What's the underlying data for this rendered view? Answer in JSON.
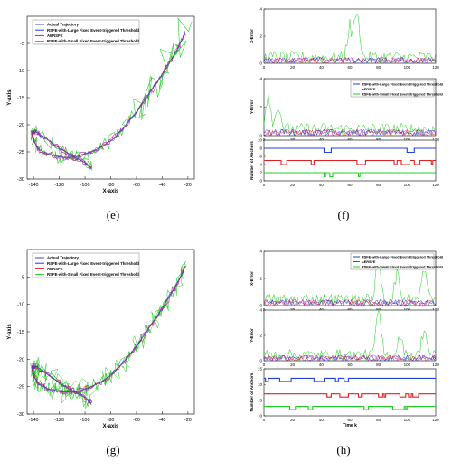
{
  "figure": {
    "panel_labels": {
      "e": "(e)",
      "f": "(f)",
      "g": "(g)",
      "h": "(h)"
    },
    "colors": {
      "actual": "#4a4a9a",
      "large": "#2040e0",
      "aersfe": "#e02020",
      "small": "#20d020",
      "magenta": "#c020c0"
    }
  },
  "chart_data": [
    {
      "id": "e",
      "type": "line",
      "xlabel": "X-axis",
      "ylabel": "Y-axis",
      "xlim": [
        -145,
        -15
      ],
      "ylim": [
        -30,
        0
      ],
      "xticks": [
        -140,
        -120,
        -100,
        -80,
        -60,
        -40,
        -20
      ],
      "yticks": [
        -30,
        -25,
        -20,
        -15,
        -10,
        -5
      ],
      "legend": [
        "Actual Trajectory",
        "RSFE-with-Large Fixed Event-triggered Threshold",
        "AERSFE",
        "RSFE-with-Small Fixed Event-triggered Threshold"
      ],
      "legend_position": "top-left",
      "series_names": [
        "Actual Trajectory",
        "RSFE-with-Large Fixed Event-triggered Threshold",
        "AERSFE",
        "RSFE-with-Small Fixed Event-triggered Threshold"
      ],
      "trajectory_x": [
        -95,
        -100,
        -110,
        -120,
        -130,
        -138,
        -141,
        -140,
        -136,
        -128,
        -118,
        -108,
        -98,
        -88,
        -78,
        -68,
        -58,
        -48,
        -38,
        -28,
        -22
      ],
      "trajectory_y": [
        -28,
        -27,
        -25.7,
        -24.3,
        -22.6,
        -21.3,
        -21.5,
        -23,
        -24.5,
        -25.5,
        -26,
        -26,
        -25.3,
        -24.2,
        -22.6,
        -20,
        -17,
        -13.5,
        -10,
        -6,
        -3
      ]
    },
    {
      "id": "f",
      "type": "line",
      "legend": [
        "RSFE-with-Large Fixed Event-triggered Threshold",
        "AERSFE",
        "RSFE-with-Small Fixed Event-triggered Threshold"
      ],
      "legend_position": "top-right",
      "subplots": [
        {
          "ylabel": "X-Error",
          "xlim": [
            0,
            120
          ],
          "ylim": [
            0,
            4
          ],
          "xticks": [
            0,
            20,
            40,
            60,
            80,
            100,
            120
          ],
          "yticks": [
            0,
            2,
            4
          ]
        },
        {
          "ylabel": "Y-Error",
          "xlim": [
            0,
            120
          ],
          "ylim": [
            0,
            4
          ],
          "xticks": [
            0,
            20,
            40,
            60,
            80,
            100,
            120
          ],
          "yticks": [
            0,
            2,
            4
          ]
        },
        {
          "ylabel": "Number of Anchors",
          "xlim": [
            0,
            120
          ],
          "ylim": [
            0,
            10
          ],
          "xticks": [
            0,
            20,
            40,
            60,
            80,
            100,
            120
          ],
          "yticks": [
            0,
            2,
            4,
            6,
            8,
            10
          ],
          "series_names": [
            "RSFE-with-Large Fixed Event-triggered Threshold",
            "AERSFE",
            "RSFE-with-Small Fixed Event-triggered Threshold"
          ],
          "levels": [
            8,
            5,
            2
          ]
        }
      ]
    },
    {
      "id": "g",
      "type": "line",
      "xlabel": "X-axis",
      "ylabel": "Y-axis",
      "xlim": [
        -145,
        -15
      ],
      "ylim": [
        -30,
        0
      ],
      "xticks": [
        -140,
        -120,
        -100,
        -80,
        -60,
        -40,
        -20
      ],
      "yticks": [
        -30,
        -25,
        -20,
        -15,
        -10,
        -5
      ],
      "legend": [
        "Actual Trajectory",
        "RSFE-with-Large Fixed Event-triggered Threshold",
        "AERSFE",
        "RSFE-with-Small Fixed Event-triggered Threshold"
      ],
      "legend_position": "top-left",
      "series_names": [
        "Actual Trajectory",
        "RSFE-with-Large Fixed Event-triggered Threshold",
        "AERSFE",
        "RSFE-with-Small Fixed Event-triggered Threshold"
      ],
      "trajectory_x": [
        -95,
        -100,
        -110,
        -120,
        -130,
        -138,
        -141,
        -140,
        -136,
        -128,
        -118,
        -108,
        -98,
        -88,
        -78,
        -68,
        -58,
        -48,
        -38,
        -28,
        -22
      ],
      "trajectory_y": [
        -28,
        -27,
        -25.7,
        -24.3,
        -22.6,
        -21.3,
        -21.5,
        -23,
        -24.5,
        -25.5,
        -26,
        -26,
        -25.3,
        -24.2,
        -22.6,
        -20,
        -17,
        -13.5,
        -10,
        -6,
        -3
      ]
    },
    {
      "id": "h",
      "type": "line",
      "legend": [
        "RSFE-with-Large Fixed Event-triggered Threshold",
        "AERSFE",
        "RSFE-with-Small Fixed Event-triggered Threshold"
      ],
      "legend_position": "top-right",
      "subplots": [
        {
          "ylabel": "X-Error",
          "xlim": [
            0,
            120
          ],
          "ylim": [
            0,
            4
          ],
          "xticks": [
            0,
            20,
            40,
            60,
            80,
            100,
            120
          ],
          "yticks": [
            0,
            2,
            4
          ]
        },
        {
          "ylabel": "Y-Error",
          "xlim": [
            0,
            120
          ],
          "ylim": [
            0,
            4
          ],
          "xticks": [
            0,
            20,
            40,
            60,
            80,
            100,
            120
          ],
          "yticks": [
            0,
            2,
            4
          ]
        },
        {
          "ylabel": "Number of Anchors",
          "xlabel": "Time k",
          "xlim": [
            0,
            120
          ],
          "ylim": [
            0,
            15
          ],
          "xticks": [
            0,
            20,
            40,
            60,
            80,
            100,
            120
          ],
          "yticks": [
            0,
            5,
            10,
            15
          ],
          "series_names": [
            "RSFE-with-Large Fixed Event-triggered Threshold",
            "AERSFE",
            "RSFE-with-Small Fixed Event-triggered Threshold"
          ],
          "levels": [
            12,
            7,
            3
          ]
        }
      ]
    }
  ]
}
